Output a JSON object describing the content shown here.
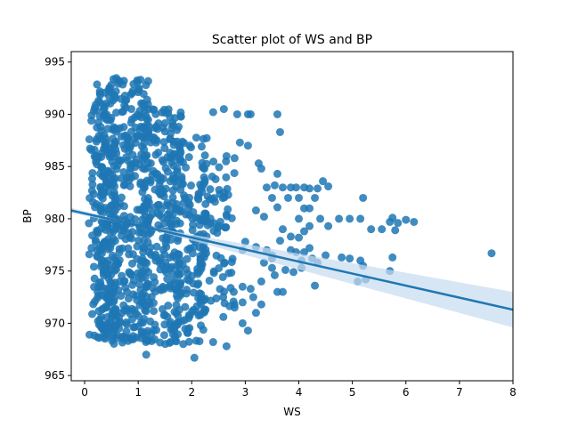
{
  "chart_data": {
    "type": "scatter",
    "title": "Scatter plot of WS and BP",
    "xlabel": "WS",
    "ylabel": "BP",
    "xlim": [
      -0.25,
      8.0
    ],
    "ylim": [
      964.5,
      996.0
    ],
    "xticks": [
      "0",
      "1",
      "2",
      "3",
      "4",
      "5",
      "6",
      "7",
      "8"
    ],
    "yticks": [
      "965",
      "970",
      "975",
      "980",
      "985",
      "990",
      "995"
    ],
    "grid": false,
    "legend": "none",
    "colors": {
      "points": "#1f77b4",
      "line": "#1f77b4",
      "band": "#c6dbef",
      "axes": "#000000"
    },
    "regression": {
      "x": [
        -0.25,
        8.0
      ],
      "y": [
        980.8,
        971.3
      ],
      "ci_lower_at_end": 969.6,
      "ci_upper_at_end": 973.0
    },
    "dense_clouds": [
      {
        "x_range": [
          0.08,
          0.6
        ],
        "y_range": [
          968.5,
          993.0
        ],
        "count": 220
      },
      {
        "x_range": [
          0.3,
          1.2
        ],
        "y_range": [
          968.0,
          993.5
        ],
        "count": 340
      },
      {
        "x_range": [
          1.0,
          1.8
        ],
        "y_range": [
          968.0,
          990.5
        ],
        "count": 260
      },
      {
        "x_range": [
          1.6,
          2.3
        ],
        "y_range": [
          968.0,
          988.0
        ],
        "count": 170
      },
      {
        "x_range": [
          2.1,
          2.8
        ],
        "y_range": [
          970.5,
          986.0
        ],
        "count": 90
      }
    ],
    "points": [
      [
        2.4,
        990.2
      ],
      [
        2.6,
        990.5
      ],
      [
        2.85,
        990.0
      ],
      [
        3.05,
        990.0
      ],
      [
        3.1,
        990.0
      ],
      [
        3.6,
        990.0
      ],
      [
        3.65,
        988.3
      ],
      [
        2.9,
        987.3
      ],
      [
        3.05,
        987.0
      ],
      [
        2.65,
        986.0
      ],
      [
        2.8,
        985.8
      ],
      [
        3.25,
        985.3
      ],
      [
        3.3,
        984.8
      ],
      [
        3.6,
        984.3
      ],
      [
        3.55,
        983.2
      ],
      [
        3.4,
        983.0
      ],
      [
        3.7,
        983.0
      ],
      [
        3.85,
        983.0
      ],
      [
        3.95,
        983.0
      ],
      [
        4.1,
        983.0
      ],
      [
        4.2,
        982.9
      ],
      [
        4.35,
        982.9
      ],
      [
        4.45,
        983.6
      ],
      [
        4.55,
        983.1
      ],
      [
        3.5,
        982.0
      ],
      [
        3.8,
        982.0
      ],
      [
        4.0,
        982.0
      ],
      [
        4.3,
        982.0
      ],
      [
        5.2,
        982.0
      ],
      [
        3.6,
        981.1
      ],
      [
        4.1,
        981.0
      ],
      [
        4.2,
        981.0
      ],
      [
        3.2,
        980.8
      ],
      [
        3.35,
        980.2
      ],
      [
        4.0,
        980.0
      ],
      [
        4.4,
        980.0
      ],
      [
        4.75,
        980.0
      ],
      [
        4.95,
        980.0
      ],
      [
        5.15,
        980.0
      ],
      [
        5.75,
        980.1
      ],
      [
        5.85,
        979.6
      ],
      [
        6.0,
        979.9
      ],
      [
        6.15,
        979.7
      ],
      [
        5.7,
        979.7
      ],
      [
        5.35,
        979.0
      ],
      [
        5.55,
        979.0
      ],
      [
        5.8,
        978.9
      ],
      [
        4.2,
        979.3
      ],
      [
        4.55,
        979.3
      ],
      [
        4.1,
        978.8
      ],
      [
        3.7,
        979.0
      ],
      [
        3.85,
        978.3
      ],
      [
        4.0,
        978.2
      ],
      [
        3.65,
        977.9
      ],
      [
        3.85,
        977.0
      ],
      [
        3.95,
        976.8
      ],
      [
        4.1,
        976.8
      ],
      [
        3.0,
        977.8
      ],
      [
        2.95,
        977.0
      ],
      [
        3.2,
        977.3
      ],
      [
        3.4,
        977.0
      ],
      [
        3.5,
        976.5
      ],
      [
        4.2,
        977.2
      ],
      [
        4.35,
        975.8
      ],
      [
        4.05,
        976.0
      ],
      [
        4.25,
        976.2
      ],
      [
        4.5,
        976.5
      ],
      [
        4.8,
        976.3
      ],
      [
        4.95,
        976.2
      ],
      [
        5.15,
        976.0
      ],
      [
        5.75,
        976.3
      ],
      [
        3.35,
        975.8
      ],
      [
        3.5,
        975.3
      ],
      [
        3.75,
        975.1
      ],
      [
        3.9,
        974.9
      ],
      [
        4.05,
        975.3
      ],
      [
        5.7,
        975.0
      ],
      [
        5.2,
        975.5
      ],
      [
        5.25,
        974.2
      ],
      [
        5.1,
        974.0
      ],
      [
        3.55,
        974.6
      ],
      [
        3.3,
        974.0
      ],
      [
        4.3,
        973.6
      ],
      [
        3.6,
        973.0
      ],
      [
        3.7,
        973.0
      ],
      [
        3.1,
        973.3
      ],
      [
        2.95,
        973.5
      ],
      [
        3.15,
        972.5
      ],
      [
        3.3,
        971.8
      ],
      [
        3.2,
        971.0
      ],
      [
        2.95,
        972.0
      ],
      [
        2.8,
        971.5
      ],
      [
        2.95,
        970.0
      ],
      [
        3.05,
        969.3
      ],
      [
        2.65,
        967.8
      ],
      [
        2.4,
        968.2
      ],
      [
        2.05,
        966.7
      ],
      [
        1.15,
        967.0
      ],
      [
        3.5,
        976.2
      ],
      [
        7.6,
        976.7
      ]
    ]
  }
}
